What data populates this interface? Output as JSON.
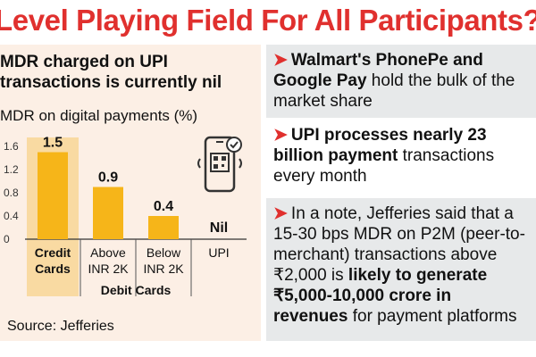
{
  "headline": "Level Playing Field For All Participants?",
  "left": {
    "heading_line1": "MDR charged on UPI",
    "heading_line2": "transactions is currently nil",
    "chart_subtitle": "MDR on digital payments (%)",
    "source": "Source: Jefferies"
  },
  "chart_data": {
    "type": "bar",
    "categories": [
      "Credit Cards",
      "Above INR 2K",
      "Below INR 2K",
      "UPI"
    ],
    "values": [
      1.5,
      0.9,
      0.4,
      null
    ],
    "data_labels": [
      "1.5",
      "0.9",
      "0.4",
      "Nil"
    ],
    "category_labels": [
      [
        "Credit",
        "Cards"
      ],
      [
        "Above",
        "INR 2K"
      ],
      [
        "Below",
        "INR 2K"
      ],
      [
        "UPI"
      ]
    ],
    "group_label": "Debit Cards",
    "yticks": [
      "1.6",
      "1.2",
      "0.8",
      "0.4",
      "0"
    ],
    "ylim": [
      0,
      1.6
    ],
    "bar_color": "#f6b519",
    "highlight_first": true
  },
  "right": {
    "p1": {
      "part1": "Walmart's PhonePe and Google Pay",
      "part2": " hold the bulk of the market share"
    },
    "p2": {
      "part1": "UPI processes nearly 23 billion payment",
      "part2": " transactions every month"
    },
    "p3": {
      "part1": "In a note, Jefferies said that a 15-30 bps MDR on P2M (peer-to-merchant) transactions above ₹2,000 is ",
      "part2": "likely to generate ₹5,000-10,000 crore in revenues",
      "part3": " for payment platforms"
    }
  },
  "colors": {
    "accent": "#e0302e",
    "bar": "#f6b519",
    "panel_grey": "#e7e9ea",
    "left_bg": "#fcefe5"
  },
  "icons": {
    "panel_bullet": "arrow-right-icon",
    "phone": "qr-phone-icon"
  }
}
